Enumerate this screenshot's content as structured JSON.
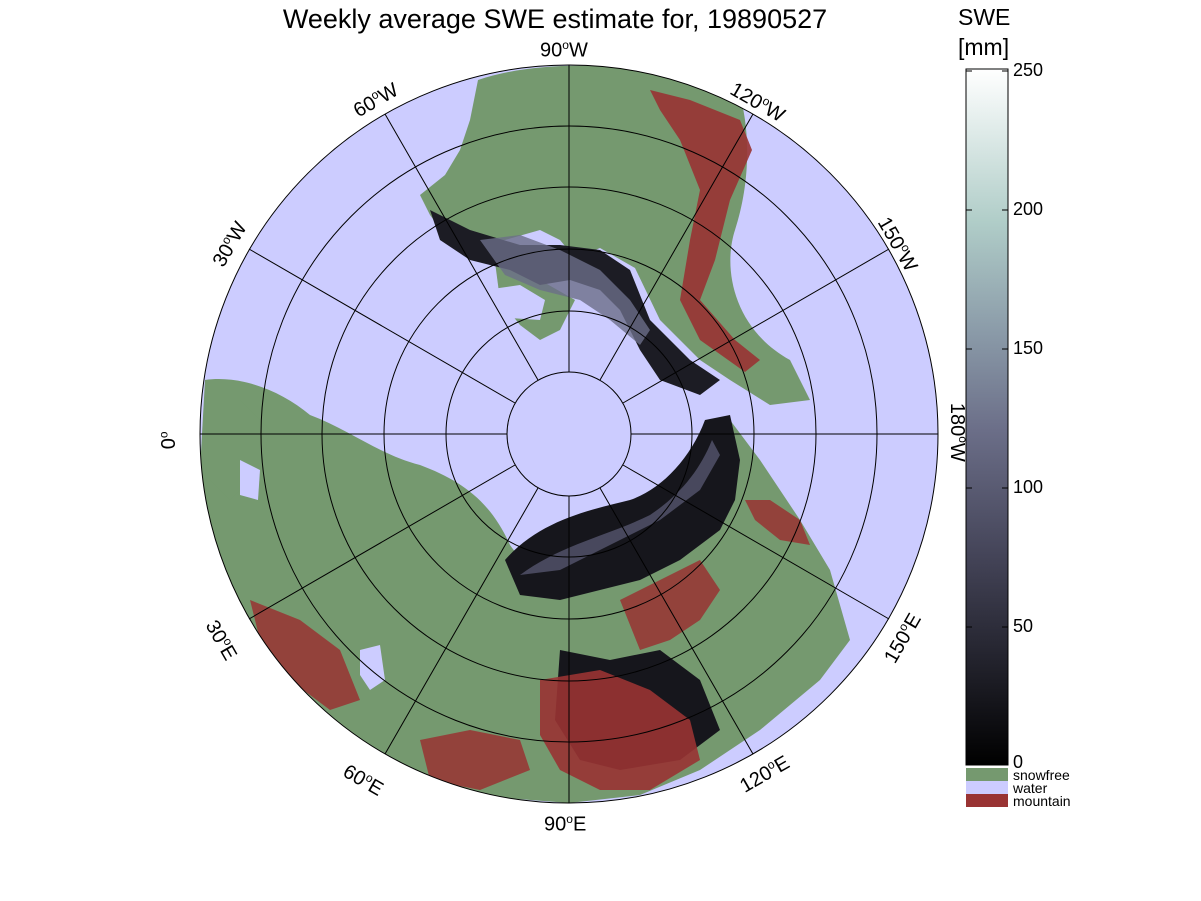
{
  "title": "Weekly average SWE estimate for, 19890527",
  "map_labels": {
    "lon_90w": "90",
    "lon_120w": "120",
    "lon_150w": "150",
    "lon_180w": "180",
    "lon_60w": "60",
    "lon_30w": "30",
    "lon_0": "0",
    "lon_30e": "30",
    "lon_60e": "60",
    "lon_90e": "90",
    "lon_120e": "120",
    "lon_150e": "150",
    "suffix_w": "W",
    "suffix_e": "E",
    "degree": "o"
  },
  "colorbar": {
    "title_line1": "SWE",
    "title_line2": "[mm]",
    "ticks": [
      "250",
      "200",
      "150",
      "100",
      "50",
      "0"
    ],
    "tick_values": [
      250,
      200,
      150,
      100,
      50,
      0
    ],
    "range": [
      0,
      250
    ],
    "gradient_colors": [
      "#000000",
      "#2b2b36",
      "#55556e",
      "#7e869a",
      "#a3bfbc",
      "#e6f2ef",
      "#ffffff"
    ]
  },
  "legend": [
    {
      "label": "snowfree",
      "color": "#75996f"
    },
    {
      "label": "water",
      "color": "#ccccff"
    },
    {
      "label": "mountain",
      "color": "#993333"
    }
  ],
  "map_colors": {
    "water": "#ccccff",
    "snowfree": "#75996f",
    "mountain": "#993333",
    "snow_low": "#16161c",
    "snow_mid": "#55556e"
  }
}
